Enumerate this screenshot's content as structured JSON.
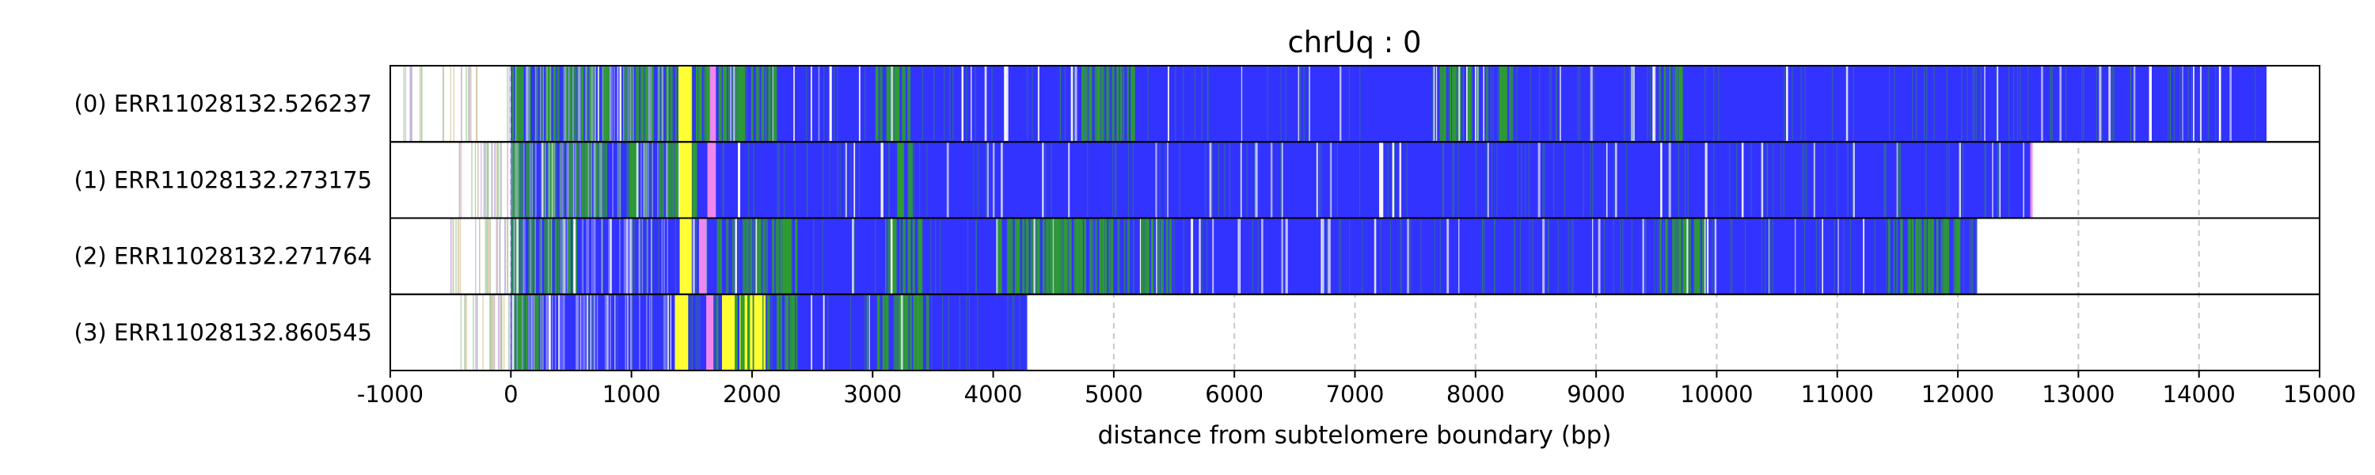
{
  "chart_data": {
    "type": "heatmap",
    "title": "chrUq : 0",
    "xlabel": "distance from subtelomere boundary (bp)",
    "ylabel": "",
    "xlim": [
      -1000,
      15000
    ],
    "xticks": [
      -1000,
      0,
      1000,
      2000,
      3000,
      4000,
      5000,
      6000,
      7000,
      8000,
      9000,
      10000,
      11000,
      12000,
      13000,
      14000,
      15000
    ],
    "xtick_labels": [
      "-1000",
      "0",
      "1000",
      "2000",
      "3000",
      "4000",
      "5000",
      "6000",
      "7000",
      "8000",
      "9000",
      "10000",
      "11000",
      "12000",
      "13000",
      "14000",
      "15000"
    ],
    "grid": "vertical dashed at x ticks",
    "colors": {
      "main": "#3333ff",
      "green": "#2e9e2e",
      "yellow": "#ffff33",
      "pink": "#ee88ee",
      "light_grid": "#c8c8c8",
      "white_gap": "#ffffff"
    },
    "reads": [
      {
        "label": "(0) ERR11028132.526237",
        "dense_start": 0,
        "end": 14560,
        "sparse_region": [
          -900,
          0
        ],
        "segments": [
          {
            "start": 1390,
            "end": 1500,
            "color": "yellow"
          },
          {
            "start": 1650,
            "end": 1700,
            "color": "pink"
          }
        ],
        "green_zones": [
          [
            0,
            2300
          ],
          [
            3000,
            3300
          ],
          [
            4700,
            5200
          ],
          [
            7700,
            8300
          ],
          [
            9500,
            9700
          ]
        ]
      },
      {
        "label": "(1) ERR11028132.273175",
        "dense_start": 0,
        "end": 12620,
        "sparse_region": [
          -500,
          0
        ],
        "segments": [
          {
            "start": 1400,
            "end": 1500,
            "color": "yellow"
          },
          {
            "start": 1630,
            "end": 1700,
            "color": "pink"
          },
          {
            "start": 12600,
            "end": 12620,
            "color": "pink"
          }
        ],
        "green_zones": [
          [
            0,
            1600
          ],
          [
            3200,
            3400
          ]
        ]
      },
      {
        "label": "(2) ERR11028132.271764",
        "dense_start": 0,
        "end": 12160,
        "sparse_region": [
          -500,
          0
        ],
        "segments": [
          {
            "start": 1400,
            "end": 1500,
            "color": "yellow"
          },
          {
            "start": 1560,
            "end": 1620,
            "color": "pink"
          }
        ],
        "green_zones": [
          [
            0,
            600
          ],
          [
            1700,
            2400
          ],
          [
            3100,
            3400
          ],
          [
            4000,
            5500
          ],
          [
            9500,
            9900
          ],
          [
            11400,
            12000
          ]
        ]
      },
      {
        "label": "(3) ERR11028132.860545",
        "dense_start": 0,
        "end": 4280,
        "sparse_region": [
          -450,
          0
        ],
        "segments": [
          {
            "start": 1360,
            "end": 1470,
            "color": "yellow"
          },
          {
            "start": 1620,
            "end": 1680,
            "color": "pink"
          },
          {
            "start": 1750,
            "end": 2100,
            "color": "yellow"
          }
        ],
        "green_zones": [
          [
            0,
            300
          ],
          [
            1700,
            2400
          ],
          [
            2950,
            3450
          ]
        ]
      }
    ]
  }
}
